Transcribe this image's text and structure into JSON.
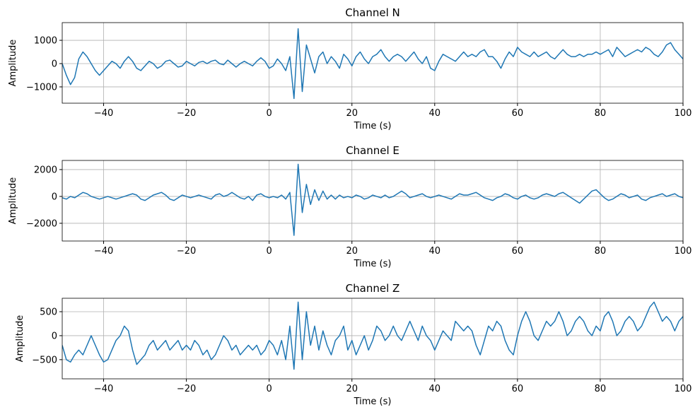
{
  "chart_data": [
    {
      "type": "line",
      "title": "Channel N",
      "xlabel": "Time (s)",
      "ylabel": "Amplitude",
      "color": "#1f77b4",
      "grid": true,
      "xlim": [
        -50,
        100
      ],
      "xticks": [
        {
          "value": -40,
          "label": "−40"
        },
        {
          "value": -20,
          "label": "−20"
        },
        0,
        20,
        40,
        60,
        80,
        100
      ],
      "ylim": [
        -1700,
        1760
      ],
      "yticks": [
        {
          "value": -1000,
          "label": "−1000"
        },
        0,
        1000
      ],
      "x": [
        -50,
        -49,
        -48,
        -47,
        -46,
        -45,
        -44,
        -43,
        -42,
        -41,
        -40,
        -39,
        -38,
        -37,
        -36,
        -35,
        -34,
        -33,
        -32,
        -31,
        -30,
        -29,
        -28,
        -27,
        -26,
        -25,
        -24,
        -23,
        -22,
        -21,
        -20,
        -19,
        -18,
        -17,
        -16,
        -15,
        -14,
        -13,
        -12,
        -11,
        -10,
        -9,
        -8,
        -7,
        -6,
        -5,
        -4,
        -3,
        -2,
        -1,
        0,
        1,
        2,
        3,
        4,
        5,
        6,
        7,
        8,
        9,
        10,
        11,
        12,
        13,
        14,
        15,
        16,
        17,
        18,
        19,
        20,
        21,
        22,
        23,
        24,
        25,
        26,
        27,
        28,
        29,
        30,
        31,
        32,
        33,
        34,
        35,
        36,
        37,
        38,
        39,
        40,
        41,
        42,
        43,
        44,
        45,
        46,
        47,
        48,
        49,
        50,
        51,
        52,
        53,
        54,
        55,
        56,
        57,
        58,
        59,
        60,
        61,
        62,
        63,
        64,
        65,
        66,
        67,
        68,
        69,
        70,
        71,
        72,
        73,
        74,
        75,
        76,
        77,
        78,
        79,
        80,
        81,
        82,
        83,
        84,
        85,
        86,
        87,
        88,
        89,
        90,
        91,
        92,
        93,
        94,
        95,
        96,
        97,
        98,
        99,
        100
      ],
      "values": [
        0,
        -500,
        -900,
        -600,
        200,
        500,
        300,
        0,
        -300,
        -500,
        -300,
        -100,
        100,
        0,
        -200,
        100,
        300,
        100,
        -200,
        -300,
        -100,
        100,
        0,
        -200,
        -100,
        100,
        150,
        0,
        -150,
        -100,
        100,
        0,
        -100,
        50,
        100,
        0,
        100,
        150,
        0,
        -50,
        150,
        0,
        -150,
        0,
        100,
        0,
        -100,
        100,
        250,
        100,
        -200,
        -100,
        200,
        0,
        -300,
        300,
        -1500,
        1500,
        -1200,
        800,
        200,
        -400,
        300,
        500,
        0,
        300,
        100,
        -200,
        400,
        200,
        -100,
        300,
        500,
        200,
        0,
        300,
        400,
        600,
        300,
        100,
        300,
        400,
        300,
        100,
        300,
        500,
        200,
        0,
        300,
        -200,
        -300,
        100,
        400,
        300,
        200,
        100,
        300,
        500,
        300,
        400,
        300,
        500,
        600,
        300,
        300,
        100,
        -200,
        200,
        500,
        300,
        700,
        500,
        400,
        300,
        500,
        300,
        400,
        500,
        300,
        200,
        400,
        600,
        400,
        300,
        300,
        400,
        300,
        400,
        400,
        500,
        400,
        500,
        600,
        300,
        700,
        500,
        300,
        400,
        500,
        600,
        500,
        700,
        600,
        400,
        300,
        500,
        800,
        900,
        600,
        400,
        200
      ]
    },
    {
      "type": "line",
      "title": "Channel E",
      "xlabel": "Time (s)",
      "ylabel": "Amplitude",
      "color": "#1f77b4",
      "grid": true,
      "xlim": [
        -50,
        100
      ],
      "xticks": [
        {
          "value": -40,
          "label": "−40"
        },
        {
          "value": -20,
          "label": "−20"
        },
        0,
        20,
        40,
        60,
        80,
        100
      ],
      "ylim": [
        -3320,
        2680
      ],
      "yticks": [
        {
          "value": -2000,
          "label": "−2000"
        },
        0,
        2000
      ],
      "x": [
        -50,
        -49,
        -48,
        -47,
        -46,
        -45,
        -44,
        -43,
        -42,
        -41,
        -40,
        -39,
        -38,
        -37,
        -36,
        -35,
        -34,
        -33,
        -32,
        -31,
        -30,
        -29,
        -28,
        -27,
        -26,
        -25,
        -24,
        -23,
        -22,
        -21,
        -20,
        -19,
        -18,
        -17,
        -16,
        -15,
        -14,
        -13,
        -12,
        -11,
        -10,
        -9,
        -8,
        -7,
        -6,
        -5,
        -4,
        -3,
        -2,
        -1,
        0,
        1,
        2,
        3,
        4,
        5,
        6,
        7,
        8,
        9,
        10,
        11,
        12,
        13,
        14,
        15,
        16,
        17,
        18,
        19,
        20,
        21,
        22,
        23,
        24,
        25,
        26,
        27,
        28,
        29,
        30,
        31,
        32,
        33,
        34,
        35,
        36,
        37,
        38,
        39,
        40,
        41,
        42,
        43,
        44,
        45,
        46,
        47,
        48,
        49,
        50,
        51,
        52,
        53,
        54,
        55,
        56,
        57,
        58,
        59,
        60,
        61,
        62,
        63,
        64,
        65,
        66,
        67,
        68,
        69,
        70,
        71,
        72,
        73,
        74,
        75,
        76,
        77,
        78,
        79,
        80,
        81,
        82,
        83,
        84,
        85,
        86,
        87,
        88,
        89,
        90,
        91,
        92,
        93,
        94,
        95,
        96,
        97,
        98,
        99,
        100
      ],
      "values": [
        -100,
        -200,
        0,
        -100,
        100,
        300,
        200,
        0,
        -100,
        -200,
        -100,
        0,
        -100,
        -200,
        -100,
        0,
        100,
        200,
        100,
        -200,
        -300,
        -100,
        100,
        200,
        300,
        100,
        -200,
        -300,
        -100,
        100,
        0,
        -100,
        0,
        100,
        0,
        -100,
        -200,
        100,
        200,
        0,
        100,
        300,
        100,
        -100,
        -200,
        0,
        -300,
        100,
        200,
        0,
        -100,
        0,
        -100,
        100,
        -200,
        300,
        -2900,
        2400,
        -1200,
        900,
        -600,
        500,
        -300,
        400,
        -200,
        100,
        -200,
        100,
        -100,
        0,
        -100,
        100,
        0,
        -200,
        -100,
        100,
        0,
        -100,
        100,
        -100,
        0,
        200,
        400,
        200,
        -100,
        0,
        100,
        200,
        0,
        -100,
        0,
        100,
        0,
        -100,
        -200,
        0,
        200,
        100,
        100,
        200,
        300,
        100,
        -100,
        -200,
        -300,
        -100,
        0,
        200,
        100,
        -100,
        -200,
        0,
        100,
        -100,
        -200,
        -100,
        100,
        200,
        100,
        0,
        200,
        300,
        100,
        -100,
        -300,
        -500,
        -200,
        100,
        400,
        500,
        200,
        -100,
        -300,
        -200,
        0,
        200,
        100,
        -100,
        0,
        100,
        -200,
        -300,
        -100,
        0,
        100,
        200,
        0,
        100,
        200,
        0,
        -100
      ]
    },
    {
      "type": "line",
      "title": "Channel Z",
      "xlabel": "Time (s)",
      "ylabel": "Amplitude",
      "color": "#1f77b4",
      "grid": true,
      "xlim": [
        -50,
        100
      ],
      "xticks": [
        {
          "value": -40,
          "label": "−40"
        },
        {
          "value": -20,
          "label": "−20"
        },
        0,
        20,
        40,
        60,
        80,
        100
      ],
      "ylim": [
        -900,
        780
      ],
      "yticks": [
        {
          "value": -500,
          "label": "−500"
        },
        0,
        500
      ],
      "x": [
        -50,
        -49,
        -48,
        -47,
        -46,
        -45,
        -44,
        -43,
        -42,
        -41,
        -40,
        -39,
        -38,
        -37,
        -36,
        -35,
        -34,
        -33,
        -32,
        -31,
        -30,
        -29,
        -28,
        -27,
        -26,
        -25,
        -24,
        -23,
        -22,
        -21,
        -20,
        -19,
        -18,
        -17,
        -16,
        -15,
        -14,
        -13,
        -12,
        -11,
        -10,
        -9,
        -8,
        -7,
        -6,
        -5,
        -4,
        -3,
        -2,
        -1,
        0,
        1,
        2,
        3,
        4,
        5,
        6,
        7,
        8,
        9,
        10,
        11,
        12,
        13,
        14,
        15,
        16,
        17,
        18,
        19,
        20,
        21,
        22,
        23,
        24,
        25,
        26,
        27,
        28,
        29,
        30,
        31,
        32,
        33,
        34,
        35,
        36,
        37,
        38,
        39,
        40,
        41,
        42,
        43,
        44,
        45,
        46,
        47,
        48,
        49,
        50,
        51,
        52,
        53,
        54,
        55,
        56,
        57,
        58,
        59,
        60,
        61,
        62,
        63,
        64,
        65,
        66,
        67,
        68,
        69,
        70,
        71,
        72,
        73,
        74,
        75,
        76,
        77,
        78,
        79,
        80,
        81,
        82,
        83,
        84,
        85,
        86,
        87,
        88,
        89,
        90,
        91,
        92,
        93,
        94,
        95,
        96,
        97,
        98,
        99,
        100
      ],
      "values": [
        -200,
        -500,
        -550,
        -400,
        -300,
        -400,
        -200,
        0,
        -200,
        -400,
        -550,
        -500,
        -300,
        -100,
        0,
        200,
        100,
        -300,
        -600,
        -500,
        -400,
        -200,
        -100,
        -300,
        -200,
        -100,
        -300,
        -200,
        -100,
        -300,
        -200,
        -300,
        -100,
        -200,
        -400,
        -300,
        -500,
        -400,
        -200,
        0,
        -100,
        -300,
        -200,
        -400,
        -300,
        -200,
        -300,
        -200,
        -400,
        -300,
        -100,
        -200,
        -400,
        -100,
        -500,
        200,
        -700,
        700,
        -500,
        500,
        -200,
        200,
        -300,
        100,
        -200,
        -400,
        -100,
        0,
        200,
        -300,
        -100,
        -400,
        -200,
        0,
        -300,
        -100,
        200,
        100,
        -100,
        0,
        200,
        0,
        -100,
        100,
        300,
        100,
        -100,
        200,
        0,
        -100,
        -300,
        -100,
        100,
        0,
        -100,
        300,
        200,
        100,
        200,
        100,
        -200,
        -400,
        -100,
        200,
        100,
        300,
        200,
        -100,
        -300,
        -400,
        0,
        300,
        500,
        300,
        0,
        -100,
        100,
        300,
        200,
        300,
        500,
        300,
        0,
        100,
        300,
        400,
        300,
        100,
        0,
        200,
        100,
        400,
        500,
        300,
        0,
        100,
        300,
        400,
        300,
        100,
        200,
        400,
        600,
        700,
        500,
        300,
        400,
        300,
        100,
        300,
        400
      ]
    }
  ]
}
